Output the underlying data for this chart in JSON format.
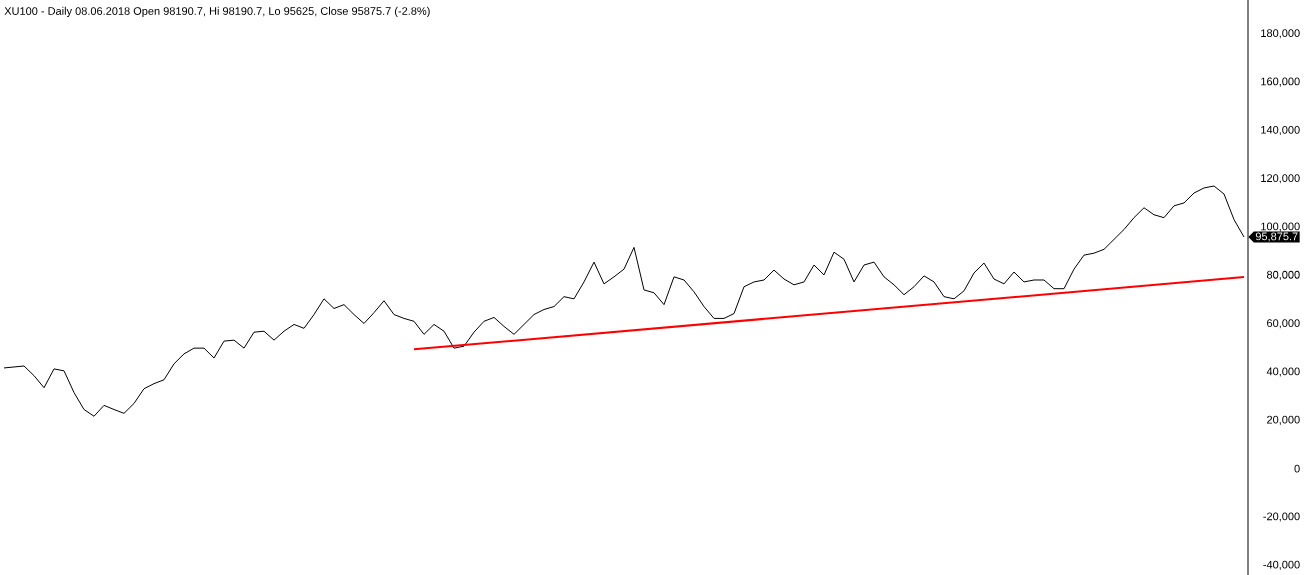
{
  "chart_data": {
    "type": "line",
    "title": "XU100 - Daily 08.06.2018 Open 98190.7, Hi 98190.7, Lo 95625, Close 95875.7 (-2.8%)",
    "categories": [
      null,
      null,
      null,
      null,
      null,
      null,
      null,
      null,
      null,
      null,
      null,
      null,
      null,
      null,
      null,
      null,
      null,
      null,
      null,
      null,
      null,
      null,
      null,
      null,
      null,
      null,
      null,
      null,
      null,
      null,
      null,
      null,
      null,
      null,
      null,
      null,
      null,
      null,
      null,
      null,
      null,
      null,
      null,
      null,
      null,
      null,
      null,
      null,
      null,
      null,
      null,
      null,
      null,
      null,
      null,
      null,
      null,
      null,
      null,
      null,
      null,
      null,
      null,
      null,
      null,
      null,
      null,
      null,
      null,
      null,
      null,
      null,
      null,
      null,
      null,
      null,
      null,
      null,
      null,
      null,
      null,
      null,
      null,
      null,
      null,
      null,
      null,
      null,
      null,
      null,
      null,
      null,
      null,
      null,
      null,
      null,
      null,
      null,
      null,
      null,
      null,
      null,
      null,
      null,
      null,
      null,
      null,
      null,
      null,
      null,
      null,
      null,
      null,
      null,
      null,
      null,
      null,
      null,
      null,
      null,
      null,
      null,
      null,
      null,
      null
    ],
    "series": [
      {
        "color": "#000000",
        "values": [
          41700,
          42100,
          42500,
          38500,
          33500,
          41300,
          40500,
          31500,
          24500,
          21700,
          26200,
          24500,
          22900,
          27000,
          33100,
          35200,
          36800,
          43400,
          47500,
          49900,
          49900,
          45800,
          52800,
          53200,
          49900,
          56500,
          56900,
          53200,
          56900,
          59700,
          58100,
          63800,
          70300,
          66300,
          67900,
          63800,
          60100,
          64600,
          69500,
          63800,
          62200,
          61000,
          55600,
          59700,
          56900,
          49900,
          50700,
          56500,
          61000,
          62600,
          58900,
          55600,
          59700,
          63800,
          65900,
          67100,
          71200,
          70300,
          77300,
          85500,
          76500,
          79400,
          82600,
          91600,
          74000,
          72800,
          67900,
          79400,
          78100,
          73200,
          67100,
          62200,
          62200,
          64200,
          75300,
          77300,
          78100,
          82200,
          78500,
          76100,
          77300,
          84300,
          80200,
          89600,
          86700,
          77300,
          84300,
          85500,
          79400,
          76100,
          72000,
          75300,
          79800,
          77300,
          71200,
          70300,
          73600,
          81000,
          85100,
          78500,
          76500,
          81400,
          77300,
          78100,
          78100,
          74500,
          74500,
          82600,
          88400,
          89200,
          90800,
          94900,
          99000,
          103900,
          108000,
          105100,
          103900,
          108800,
          110000,
          114100,
          116200,
          117000,
          113700,
          103100,
          95900
        ]
      },
      {
        "type": "line",
        "color": "#ff0000",
        "values": [
          null,
          null,
          null,
          null,
          null,
          null,
          null,
          null,
          null,
          null,
          null,
          null,
          null,
          null,
          null,
          null,
          null,
          null,
          null,
          null,
          null,
          null,
          null,
          null,
          null,
          null,
          null,
          null,
          null,
          null,
          null,
          null,
          null,
          null,
          null,
          null,
          null,
          null,
          null,
          null,
          null,
          49400,
          null,
          null,
          null,
          null,
          null,
          null,
          null,
          null,
          null,
          null,
          null,
          null,
          null,
          null,
          null,
          null,
          null,
          null,
          null,
          null,
          null,
          null,
          null,
          null,
          null,
          null,
          null,
          null,
          null,
          null,
          null,
          null,
          null,
          null,
          null,
          null,
          null,
          null,
          null,
          null,
          null,
          null,
          null,
          null,
          null,
          null,
          null,
          null,
          null,
          null,
          null,
          null,
          null,
          null,
          null,
          null,
          null,
          null,
          null,
          null,
          null,
          null,
          null,
          null,
          null,
          null,
          null,
          null,
          null,
          null,
          null,
          null,
          null,
          null,
          null,
          null,
          null,
          null,
          null,
          null,
          null,
          null,
          79300
        ]
      }
    ],
    "ylim": [
      -44000,
      194000
    ],
    "yticks": [
      {
        "value": -40000,
        "label": "-40,000"
      },
      {
        "value": -20000,
        "label": "-20,000"
      },
      0,
      {
        "value": 20000,
        "label": "20,000"
      },
      {
        "value": 40000,
        "label": "40,000"
      },
      {
        "value": 60000,
        "label": "60,000"
      },
      {
        "value": 80000,
        "label": "80,000"
      },
      {
        "value": 100000,
        "label": "100,000"
      },
      {
        "value": 120000,
        "label": "120,000"
      },
      {
        "value": 140000,
        "label": "140,000"
      },
      {
        "value": 160000,
        "label": "160,000"
      },
      {
        "value": 180000,
        "label": "180,000"
      }
    ],
    "tick_labels": "y",
    "annotations": [
      "95,875.7"
    ]
  }
}
